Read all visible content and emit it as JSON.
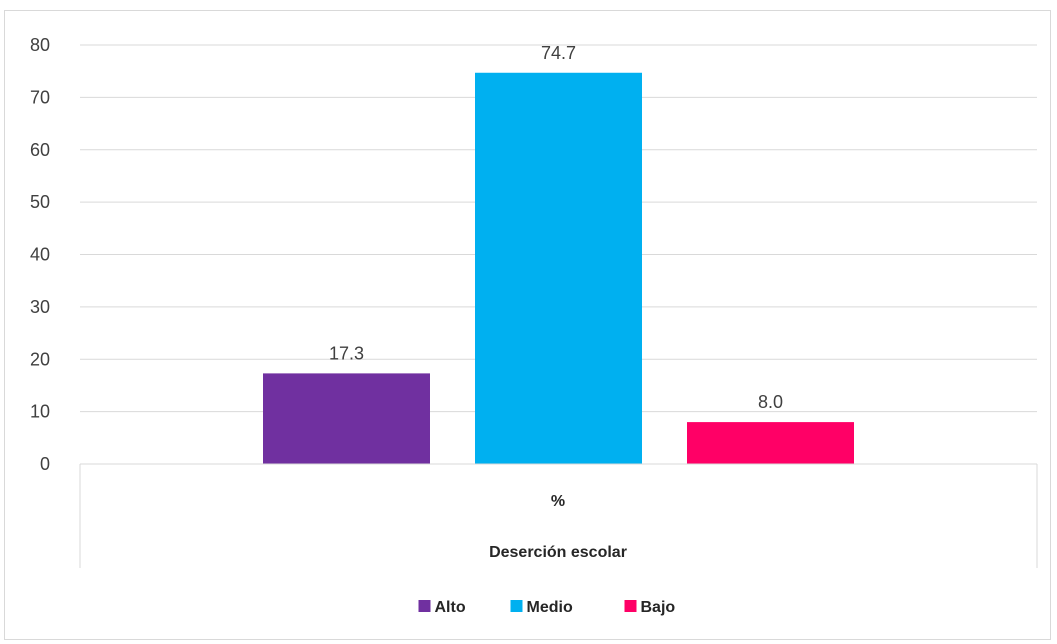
{
  "chart_data": {
    "type": "bar",
    "categories": [
      "%"
    ],
    "group_label": "Deserción escolar",
    "series": [
      {
        "name": "Alto",
        "values": [
          17.3
        ],
        "color": "#7030a0",
        "label": "17.3"
      },
      {
        "name": "Medio",
        "values": [
          74.7
        ],
        "color": "#00b0f0",
        "label": "74.7"
      },
      {
        "name": "Bajo",
        "values": [
          8.0
        ],
        "color": "#ff0066",
        "label": "8.0"
      }
    ],
    "ylim": [
      0,
      80
    ],
    "yticks": [
      "0",
      "10",
      "20",
      "30",
      "40",
      "50",
      "60",
      "70",
      "80"
    ],
    "grid": true,
    "legend": "bottom",
    "gridline_color": "#d9d9d9",
    "axis_text_color": "#404040"
  }
}
